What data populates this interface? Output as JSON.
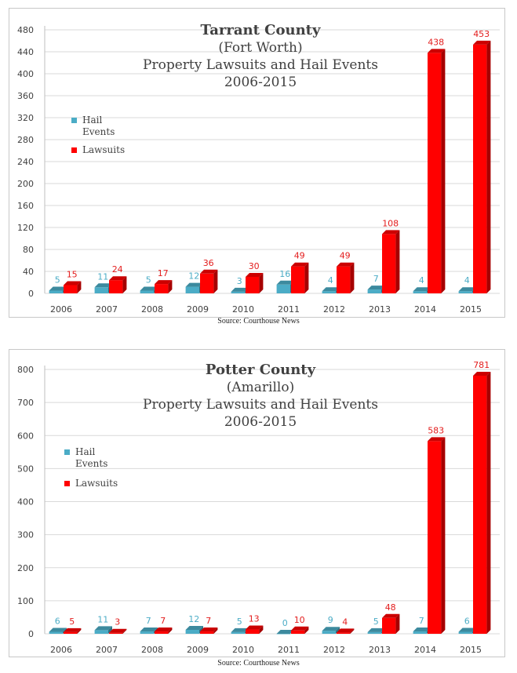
{
  "colors": {
    "hail": "#4bacc6",
    "lawsuits": "#ff0000",
    "hail_label": "#4bacc6",
    "lawsuits_label": "#e31d1d",
    "grid": "#d9d9d9"
  },
  "source_text": "Source: Courthouse News",
  "charts": [
    {
      "title_main": "Tarrant County",
      "title_sub": "(Fort Worth)",
      "title_line3": "Property Lawsuits and Hail Events",
      "title_line4": "2006-2015",
      "legend": [
        {
          "label": "Hail Events",
          "color_key": "hail"
        },
        {
          "label": "Lawsuits",
          "color_key": "lawsuits"
        }
      ],
      "legend_labels": {
        "hail": "Hail Events",
        "lawsuits": "Lawsuits"
      }
    },
    {
      "title_main": "Potter County",
      "title_sub": "(Amarillo)",
      "title_line3": "Property Lawsuits and Hail Events",
      "title_line4": "2006-2015",
      "legend_labels": {
        "hail": "Hail Events",
        "lawsuits": "Lawsuits"
      }
    }
  ],
  "chart_data": [
    {
      "type": "bar",
      "title": "Tarrant County (Fort Worth) Property Lawsuits and Hail Events 2006-2015",
      "categories": [
        "2006",
        "2007",
        "2008",
        "2009",
        "2010",
        "2011",
        "2012",
        "2013",
        "2014",
        "2015"
      ],
      "series": [
        {
          "name": "Hail Events",
          "values": [
            5,
            11,
            5,
            12,
            3,
            16,
            4,
            7,
            4,
            4
          ]
        },
        {
          "name": "Lawsuits",
          "values": [
            15,
            24,
            17,
            36,
            30,
            49,
            49,
            108,
            438,
            453
          ]
        }
      ],
      "yticks": [
        0,
        40,
        80,
        120,
        160,
        200,
        240,
        280,
        320,
        360,
        400,
        440,
        480
      ],
      "ylim": [
        0,
        480
      ],
      "grid": true,
      "legend_position": "left"
    },
    {
      "type": "bar",
      "title": "Potter County (Amarillo) Property Lawsuits and Hail Events 2006-2015",
      "categories": [
        "2006",
        "2007",
        "2008",
        "2009",
        "2010",
        "2011",
        "2012",
        "2013",
        "2014",
        "2015"
      ],
      "series": [
        {
          "name": "Hail Events",
          "values": [
            6,
            11,
            7,
            12,
            5,
            0,
            9,
            5,
            7,
            6
          ]
        },
        {
          "name": "Lawsuits",
          "values": [
            5,
            3,
            7,
            7,
            13,
            10,
            4,
            48,
            583,
            781
          ]
        }
      ],
      "yticks": [
        0,
        100,
        200,
        300,
        400,
        500,
        600,
        700,
        800
      ],
      "ylim": [
        0,
        800
      ],
      "grid": true,
      "legend_position": "left"
    }
  ]
}
